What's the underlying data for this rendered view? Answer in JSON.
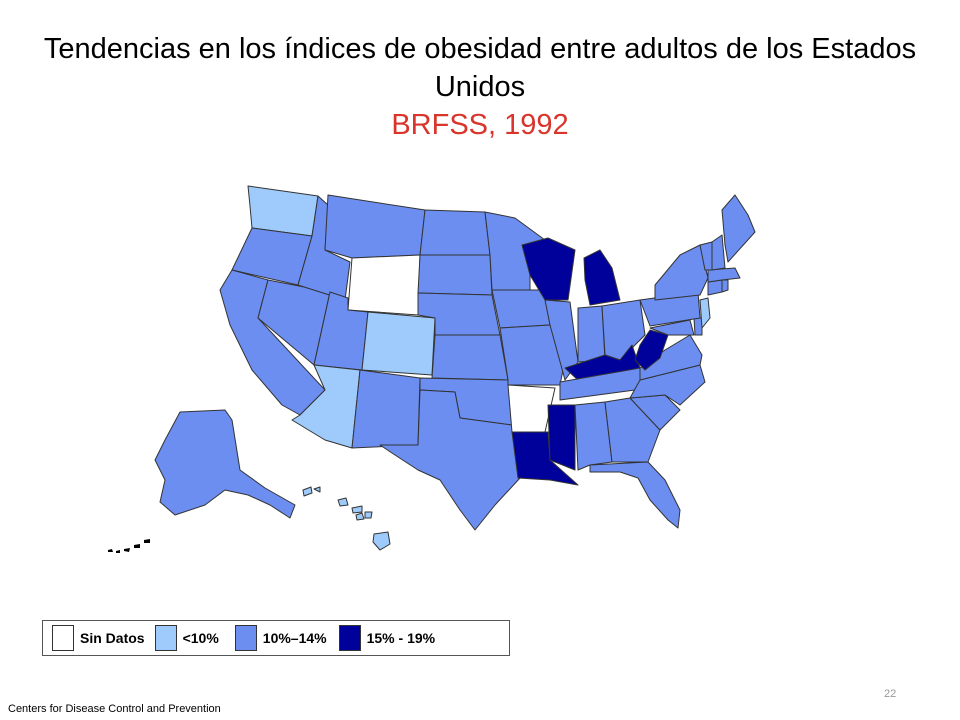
{
  "title": "Tendencias en los índices de obesidad entre adultos de los Estados Unidos",
  "subtitle": "BRFSS, 1992",
  "colors": {
    "subtitle": "#d9352c",
    "none": "#ffffff",
    "lt10": "#9ecbfb",
    "p10_14": "#6b8ef0",
    "p15_19": "#00009a",
    "border": "#333333"
  },
  "legend": [
    {
      "key": "none",
      "label": "Sin Datos"
    },
    {
      "key": "lt10",
      "label": "<10%"
    },
    {
      "key": "p10_14",
      "label": "10%–14%"
    },
    {
      "key": "p15_19",
      "label": "15% - 19%"
    }
  ],
  "states": {
    "WA": "lt10",
    "OR": "p10_14",
    "CA": "p10_14",
    "NV": "p10_14",
    "ID": "p10_14",
    "MT": "p10_14",
    "WY": "none",
    "UT": "p10_14",
    "CO": "lt10",
    "AZ": "lt10",
    "NM": "p10_14",
    "ND": "p10_14",
    "SD": "p10_14",
    "NE": "p10_14",
    "KS": "p10_14",
    "OK": "p10_14",
    "TX": "p10_14",
    "MN": "p10_14",
    "IA": "p10_14",
    "MO": "p10_14",
    "AR": "none",
    "LA": "p15_19",
    "WI": "p15_19",
    "IL": "p10_14",
    "MI": "p15_19",
    "IN": "p10_14",
    "OH": "p10_14",
    "KY": "p15_19",
    "TN": "p10_14",
    "MS": "p15_19",
    "AL": "p10_14",
    "GA": "p10_14",
    "FL": "p10_14",
    "SC": "p10_14",
    "NC": "p10_14",
    "VA": "p10_14",
    "WV": "p15_19",
    "MD": "p10_14",
    "DE": "p10_14",
    "NJ": "lt10",
    "PA": "p10_14",
    "NY": "p10_14",
    "CT": "p10_14",
    "RI": "p10_14",
    "MA": "p10_14",
    "VT": "p10_14",
    "NH": "p10_14",
    "ME": "p10_14",
    "AK": "p10_14",
    "HI": "lt10"
  },
  "source": "Centers for Disease Control and Prevention",
  "page_number": "22"
}
